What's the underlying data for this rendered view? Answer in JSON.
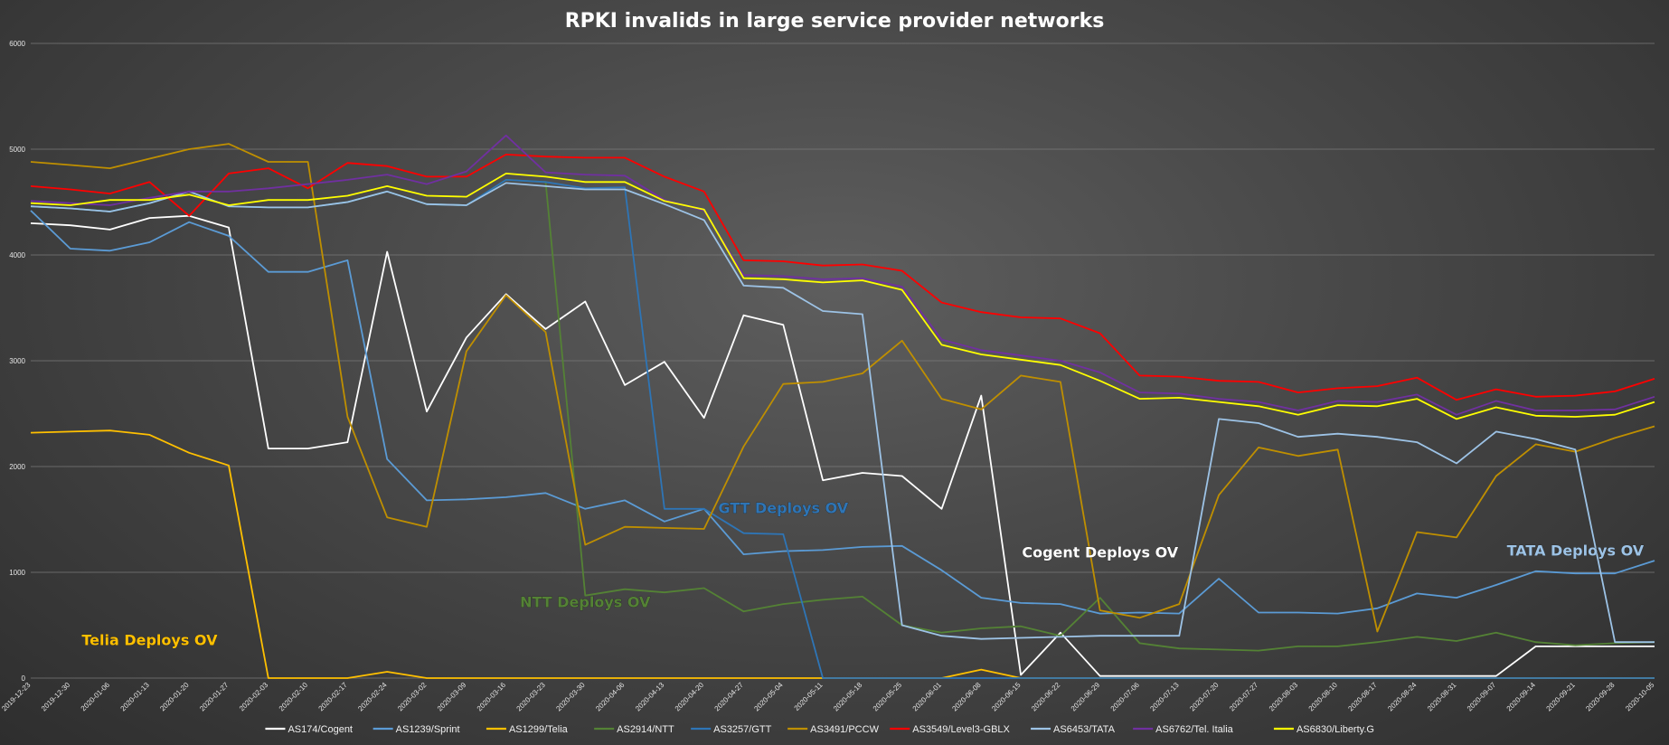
{
  "chart_data": {
    "type": "line",
    "title": "RPKI invalids in large service provider networks",
    "xlabel": "",
    "ylabel": "",
    "ylim": [
      0,
      6000
    ],
    "yticks": [
      0,
      1000,
      2000,
      3000,
      4000,
      5000,
      6000
    ],
    "grid": true,
    "legend": "bottom",
    "x": [
      "2019-12-23",
      "2019-12-30",
      "2020-01-06",
      "2020-01-13",
      "2020-01-20",
      "2020-01-27",
      "2020-02-03",
      "2020-02-10",
      "2020-02-17",
      "2020-02-24",
      "2020-03-02",
      "2020-03-09",
      "2020-03-16",
      "2020-03-23",
      "2020-03-30",
      "2020-04-06",
      "2020-04-13",
      "2020-04-20",
      "2020-04-27",
      "2020-05-04",
      "2020-05-11",
      "2020-05-18",
      "2020-05-25",
      "2020-06-01",
      "2020-06-08",
      "2020-06-15",
      "2020-06-22",
      "2020-06-29",
      "2020-07-06",
      "2020-07-13",
      "2020-07-20",
      "2020-07-27",
      "2020-08-03",
      "2020-08-10",
      "2020-08-17",
      "2020-08-24",
      "2020-08-31",
      "2020-09-07",
      "2020-09-14",
      "2020-09-21",
      "2020-09-28",
      "2020-10-05"
    ],
    "series": [
      {
        "name": "AS174/Cogent",
        "color": "#ffffff",
        "values": [
          4300,
          4280,
          4240,
          4350,
          4370,
          4260,
          2170,
          2170,
          2230,
          4030,
          2520,
          3220,
          3630,
          3300,
          3560,
          2770,
          2990,
          2460,
          3430,
          3340,
          1870,
          1940,
          1910,
          1600,
          2670,
          30,
          430,
          20,
          20,
          20,
          20,
          20,
          20,
          20,
          20,
          20,
          20,
          20,
          300,
          300,
          300,
          300
        ]
      },
      {
        "name": "AS1239/Sprint",
        "color": "#5b9bd5",
        "values": [
          4420,
          4060,
          4040,
          4120,
          4310,
          4180,
          3840,
          3840,
          3950,
          2070,
          1680,
          1690,
          1710,
          1750,
          1600,
          1680,
          1480,
          1600,
          1170,
          1200,
          1210,
          1240,
          1250,
          1020,
          760,
          710,
          700,
          610,
          620,
          610,
          940,
          620,
          620,
          610,
          660,
          800,
          760,
          880,
          1010,
          990,
          990,
          1110
        ]
      },
      {
        "name": "AS1299/Telia",
        "color": "#ffc000",
        "values": [
          2320,
          2330,
          2340,
          2300,
          2130,
          2010,
          0,
          0,
          0,
          60,
          0,
          0,
          0,
          0,
          0,
          0,
          0,
          0,
          0,
          0,
          0,
          0,
          0,
          0,
          80,
          0,
          0,
          0,
          0,
          0,
          0,
          0,
          0,
          0,
          0,
          0,
          0,
          0,
          0,
          0,
          0,
          0
        ]
      },
      {
        "name": "AS2914/NTT",
        "color": "#548235",
        "values": [
          4460,
          4440,
          4410,
          4490,
          4600,
          4460,
          4450,
          4450,
          4500,
          4600,
          4480,
          4470,
          4710,
          4690,
          780,
          840,
          810,
          850,
          630,
          700,
          740,
          770,
          500,
          430,
          470,
          490,
          400,
          760,
          330,
          280,
          270,
          260,
          300,
          300,
          340,
          390,
          350,
          430,
          340,
          310,
          330,
          340
        ]
      },
      {
        "name": "AS3257/GTT",
        "color": "#2e75b6",
        "values": [
          4460,
          4440,
          4410,
          4490,
          4600,
          4460,
          4450,
          4450,
          4500,
          4600,
          4480,
          4470,
          4710,
          4690,
          4630,
          4640,
          1600,
          1600,
          1370,
          1360,
          0,
          0,
          0,
          0,
          0,
          0,
          0,
          0,
          0,
          0,
          0,
          0,
          0,
          0,
          0,
          0,
          0,
          0,
          0,
          0,
          0,
          0
        ]
      },
      {
        "name": "AS3491/PCCW",
        "color": "#bf8f00",
        "values": [
          4880,
          4850,
          4820,
          4910,
          5000,
          5050,
          4880,
          4880,
          2470,
          1520,
          1430,
          3090,
          3620,
          3270,
          1260,
          1430,
          1420,
          1410,
          2190,
          2780,
          2800,
          2880,
          3190,
          2640,
          2540,
          2860,
          2800,
          640,
          570,
          700,
          1730,
          2180,
          2100,
          2160,
          440,
          1380,
          1330,
          1910,
          2210,
          2140,
          2270,
          2380
        ]
      },
      {
        "name": "AS3549/Level3-GBLX",
        "color": "#ff0000",
        "values": [
          4650,
          4620,
          4580,
          4690,
          4370,
          4770,
          4820,
          4630,
          4870,
          4840,
          4740,
          4740,
          4950,
          4930,
          4920,
          4920,
          4740,
          4600,
          3950,
          3940,
          3900,
          3910,
          3850,
          3550,
          3460,
          3410,
          3400,
          3260,
          2860,
          2850,
          2810,
          2800,
          2700,
          2740,
          2760,
          2840,
          2630,
          2730,
          2660,
          2670,
          2710,
          2830
        ]
      },
      {
        "name": "AS6453/TATA",
        "color": "#9dc3e6",
        "values": [
          4460,
          4440,
          4410,
          4490,
          4600,
          4460,
          4450,
          4450,
          4500,
          4600,
          4480,
          4470,
          4680,
          4650,
          4620,
          4620,
          4480,
          4330,
          3710,
          3690,
          3470,
          3440,
          500,
          400,
          370,
          380,
          390,
          400,
          400,
          400,
          2450,
          2410,
          2280,
          2310,
          2280,
          2230,
          2030,
          2330,
          2260,
          2160,
          340,
          340
        ]
      },
      {
        "name": "AS6762/Tel. Italia",
        "color": "#7030a0",
        "values": [
          4510,
          4490,
          4470,
          4540,
          4600,
          4600,
          4630,
          4670,
          4710,
          4760,
          4670,
          4790,
          5130,
          4780,
          4760,
          4750,
          4520,
          4420,
          3810,
          3800,
          3770,
          3780,
          3700,
          3200,
          3100,
          3050,
          3000,
          2890,
          2700,
          2690,
          2640,
          2610,
          2530,
          2620,
          2610,
          2680,
          2490,
          2620,
          2530,
          2530,
          2540,
          2660
        ]
      },
      {
        "name": "AS6830/Liberty.G",
        "color": "#ffff00",
        "values": [
          4490,
          4470,
          4520,
          4520,
          4570,
          4470,
          4520,
          4520,
          4560,
          4650,
          4560,
          4550,
          4770,
          4740,
          4690,
          4690,
          4510,
          4430,
          3780,
          3770,
          3740,
          3760,
          3670,
          3150,
          3060,
          3010,
          2960,
          2810,
          2640,
          2650,
          2610,
          2570,
          2490,
          2580,
          2570,
          2640,
          2450,
          2560,
          2480,
          2470,
          2490,
          2610
        ]
      }
    ],
    "annotations": [
      {
        "text": "Telia Deploys OV",
        "color": "#ffc000",
        "x": "2020-01-13",
        "y": 310
      },
      {
        "text": "NTT Deploys OV",
        "color": "#548235",
        "x": "2020-03-30",
        "y": 670
      },
      {
        "text": "GTT Deploys OV",
        "color": "#2e75b6",
        "x": "2020-05-04",
        "y": 1560
      },
      {
        "text": "Cogent Deploys OV",
        "color": "#ffffff",
        "x": "2020-06-29",
        "y": 1140
      },
      {
        "text": "TATA Deploys OV",
        "color": "#9dc3e6",
        "x": "2020-09-21",
        "y": 1160
      }
    ]
  }
}
